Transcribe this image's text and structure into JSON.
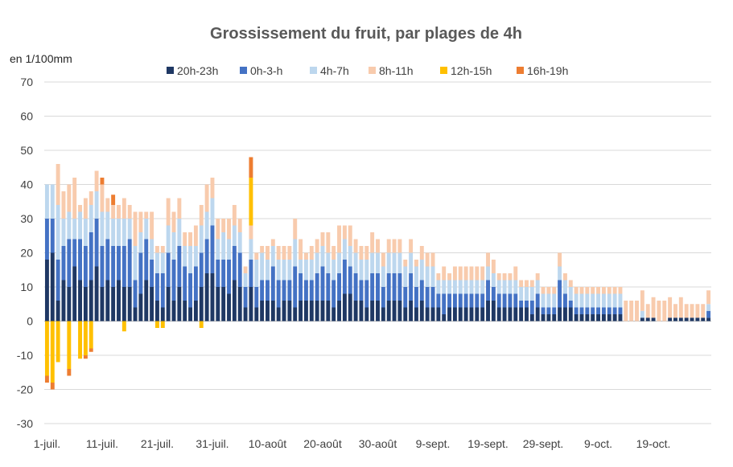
{
  "chart_data": {
    "type": "bar",
    "stacked": true,
    "title": "Grossissement du fruit, par plages de 4h",
    "ylabel": "en 1/100mm",
    "xlabel": "",
    "ylim": [
      -30,
      70
    ],
    "yticks": [
      70,
      60,
      50,
      40,
      30,
      20,
      10,
      0,
      -10,
      -20,
      -30
    ],
    "xtick_labels": [
      "1-juil.",
      "11-juil.",
      "21-juil.",
      "31-juil.",
      "10-août",
      "20-août",
      "30-août",
      "9-sept.",
      "19-sept.",
      "29-sept.",
      "9-oct.",
      "19-oct."
    ],
    "grid": true,
    "legend_position": "top",
    "series": [
      {
        "name": "20h-23h",
        "color": "#1f3864",
        "values": [
          18,
          20,
          6,
          12,
          10,
          16,
          12,
          10,
          12,
          16,
          10,
          12,
          10,
          12,
          10,
          10,
          4,
          8,
          12,
          10,
          6,
          4,
          10,
          6,
          10,
          6,
          4,
          6,
          10,
          14,
          14,
          10,
          10,
          8,
          12,
          10,
          4,
          10,
          4,
          6,
          6,
          6,
          4,
          6,
          6,
          4,
          6,
          6,
          6,
          6,
          6,
          6,
          4,
          6,
          8,
          8,
          6,
          6,
          4,
          6,
          6,
          4,
          6,
          6,
          6,
          4,
          6,
          4,
          6,
          4,
          4,
          4,
          2,
          4,
          4,
          4,
          4,
          4,
          4,
          4,
          6,
          6,
          4,
          4,
          4,
          4,
          4,
          4,
          2,
          4,
          2,
          2,
          2,
          4,
          4,
          4,
          2,
          2,
          2,
          2,
          2,
          2,
          2,
          2,
          2,
          0,
          0,
          0,
          1,
          1,
          1,
          0,
          0,
          1,
          1,
          1,
          1,
          1,
          1,
          1,
          1
        ]
      },
      {
        "name": "0h-3-h",
        "color": "#4472c4",
        "values": [
          12,
          10,
          12,
          10,
          14,
          8,
          12,
          12,
          14,
          14,
          12,
          12,
          12,
          10,
          12,
          14,
          8,
          12,
          12,
          8,
          8,
          10,
          10,
          12,
          12,
          10,
          10,
          10,
          10,
          10,
          14,
          8,
          8,
          10,
          10,
          10,
          6,
          8,
          6,
          6,
          6,
          10,
          8,
          6,
          6,
          12,
          8,
          6,
          6,
          8,
          10,
          8,
          8,
          8,
          10,
          8,
          8,
          6,
          8,
          8,
          8,
          6,
          8,
          8,
          8,
          6,
          8,
          6,
          6,
          6,
          6,
          4,
          6,
          4,
          4,
          4,
          4,
          4,
          4,
          4,
          6,
          4,
          4,
          4,
          4,
          4,
          2,
          2,
          4,
          4,
          2,
          2,
          2,
          8,
          4,
          2,
          2,
          2,
          2,
          2,
          2,
          2,
          2,
          2,
          2,
          0,
          0,
          0,
          0,
          0,
          0,
          0,
          0,
          0,
          0,
          0,
          0,
          0,
          0,
          0,
          2
        ]
      },
      {
        "name": "4h-7h",
        "color": "#bdd7ee",
        "values": [
          10,
          10,
          16,
          8,
          8,
          6,
          8,
          8,
          8,
          8,
          10,
          8,
          8,
          8,
          8,
          6,
          10,
          6,
          6,
          6,
          6,
          6,
          8,
          8,
          8,
          6,
          8,
          6,
          8,
          8,
          8,
          6,
          8,
          6,
          6,
          6,
          4,
          6,
          8,
          8,
          6,
          6,
          6,
          6,
          6,
          8,
          4,
          6,
          6,
          6,
          6,
          6,
          6,
          6,
          6,
          6,
          6,
          6,
          6,
          6,
          6,
          6,
          6,
          6,
          6,
          6,
          6,
          6,
          6,
          6,
          6,
          4,
          4,
          4,
          4,
          4,
          4,
          4,
          4,
          4,
          4,
          4,
          4,
          4,
          4,
          4,
          4,
          4,
          4,
          4,
          4,
          4,
          4,
          4,
          4,
          4,
          4,
          4,
          4,
          4,
          4,
          4,
          4,
          4,
          4,
          0,
          0,
          0,
          2,
          0,
          0,
          0,
          0,
          0,
          0,
          0,
          0,
          0,
          0,
          0,
          2
        ]
      },
      {
        "name": "8h-11h",
        "color": "#f8cbad",
        "values": [
          0,
          0,
          12,
          8,
          8,
          12,
          2,
          6,
          4,
          6,
          8,
          4,
          4,
          4,
          6,
          4,
          10,
          6,
          2,
          8,
          2,
          2,
          8,
          6,
          6,
          4,
          4,
          6,
          6,
          8,
          6,
          6,
          4,
          6,
          6,
          4,
          2,
          4,
          2,
          2,
          4,
          2,
          4,
          4,
          4,
          6,
          6,
          2,
          4,
          4,
          4,
          6,
          4,
          8,
          4,
          6,
          4,
          4,
          4,
          6,
          4,
          4,
          4,
          4,
          4,
          2,
          4,
          2,
          4,
          4,
          4,
          2,
          4,
          2,
          4,
          4,
          4,
          4,
          4,
          4,
          4,
          4,
          2,
          2,
          2,
          4,
          2,
          2,
          2,
          2,
          2,
          2,
          2,
          4,
          2,
          2,
          2,
          2,
          2,
          2,
          2,
          2,
          2,
          2,
          2,
          6,
          6,
          6,
          6,
          4,
          6,
          6,
          6,
          6,
          4,
          6,
          4,
          4,
          4,
          4,
          4
        ]
      },
      {
        "name": "12h-15h",
        "color": "#ffc000",
        "values": [
          -16,
          -18,
          -12,
          0,
          -14,
          0,
          -11,
          -10,
          -8,
          0,
          0,
          0,
          0,
          0,
          -3,
          0,
          0,
          0,
          0,
          0,
          -2,
          -2,
          0,
          0,
          0,
          0,
          0,
          0,
          -2,
          0,
          0,
          0,
          0,
          0,
          0,
          0,
          0,
          14,
          0,
          0,
          0,
          0,
          0,
          0,
          0,
          0,
          0,
          0,
          0,
          0,
          0,
          0,
          0,
          0,
          0,
          0,
          0,
          0,
          0,
          0,
          0,
          0,
          0,
          0,
          0,
          0,
          0,
          0,
          0,
          0,
          0,
          0,
          0,
          0,
          0,
          0,
          0,
          0,
          0,
          0,
          0,
          0,
          0,
          0,
          0,
          0,
          0,
          0,
          0,
          0,
          0,
          0,
          0,
          0,
          0,
          0,
          0,
          0,
          0,
          0,
          0,
          0,
          0,
          0,
          0,
          0,
          0,
          0,
          0,
          0,
          0,
          0,
          0,
          0,
          0,
          0,
          0,
          0,
          0,
          0,
          0
        ]
      },
      {
        "name": "16h-19h",
        "color": "#ed7d31",
        "values": [
          -2,
          -2,
          0,
          0,
          -2,
          0,
          0,
          -1,
          -1,
          0,
          2,
          0,
          3,
          0,
          0,
          0,
          0,
          0,
          0,
          0,
          0,
          0,
          0,
          0,
          0,
          0,
          0,
          0,
          0,
          0,
          0,
          0,
          0,
          0,
          0,
          0,
          0,
          6,
          0,
          0,
          0,
          0,
          0,
          0,
          0,
          0,
          0,
          0,
          0,
          0,
          0,
          0,
          0,
          0,
          0,
          0,
          0,
          0,
          0,
          0,
          0,
          0,
          0,
          0,
          0,
          0,
          0,
          0,
          0,
          0,
          0,
          0,
          0,
          0,
          0,
          0,
          0,
          0,
          0,
          0,
          0,
          0,
          0,
          0,
          0,
          0,
          0,
          0,
          0,
          0,
          0,
          0,
          0,
          0,
          0,
          0,
          0,
          0,
          0,
          0,
          0,
          0,
          0,
          0,
          0,
          0,
          0,
          0,
          0,
          0,
          0,
          0,
          0,
          0,
          0,
          0,
          0,
          0,
          0,
          0,
          0
        ]
      }
    ]
  }
}
